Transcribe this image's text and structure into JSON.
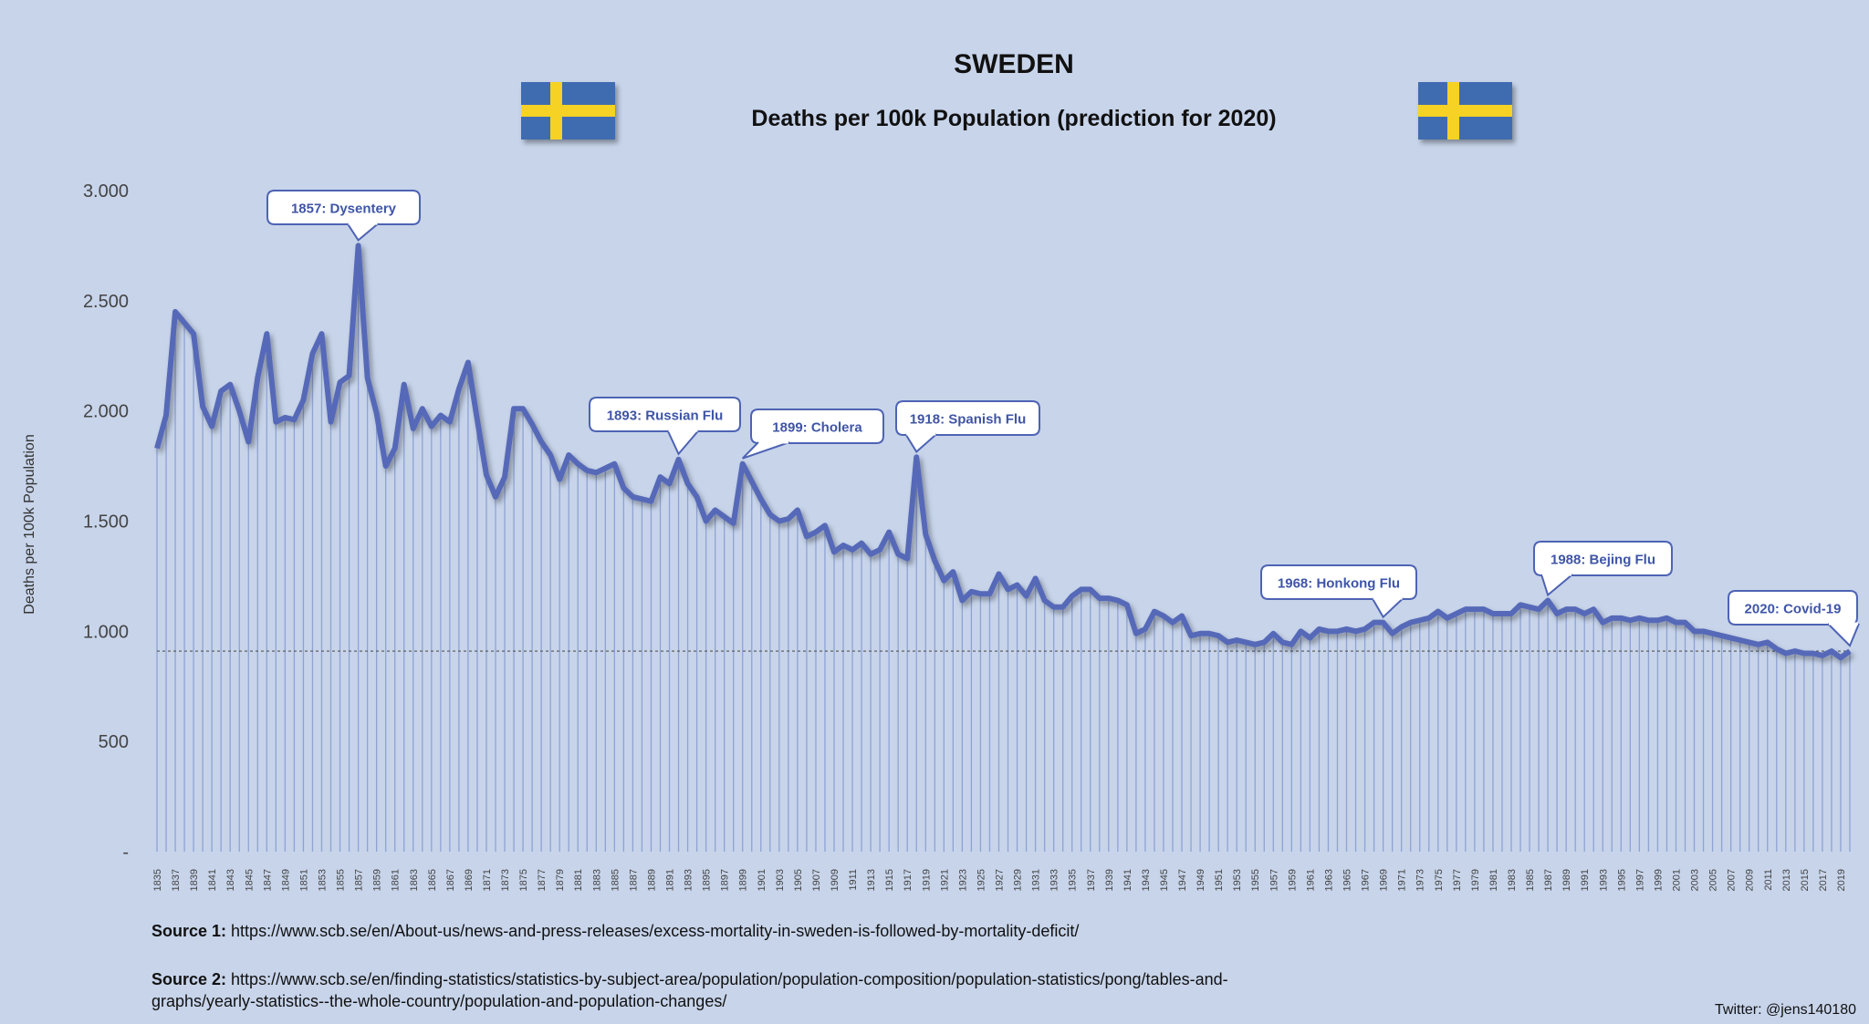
{
  "title": "SWEDEN",
  "subtitle": "Deaths per 100k Population (prediction for 2020)",
  "flag_colors": {
    "blue": "#3f6cb0",
    "yellow": "#f5d224"
  },
  "sources": [
    {
      "label": "Source 1:",
      "text": "https://www.scb.se/en/About-us/news-and-press-releases/excess-mortality-in-sweden-is-followed-by-mortality-deficit/"
    },
    {
      "label": "Source 2:",
      "text": "https://www.scb.se/en/finding-statistics/statistics-by-subject-area/population/population-composition/population-statistics/pong/tables-and-graphs/yearly-statistics--the-whole-country/population-and-population-changes/"
    }
  ],
  "twitter": "Twitter: @jens140180",
  "chart_data": {
    "type": "line",
    "title": "Deaths per 100k Population (prediction for 2020)",
    "ylabel": "Deaths per 100k Population",
    "xlabel": "",
    "ylim": [
      0,
      3000
    ],
    "yticks": [
      0,
      500,
      1000,
      1500,
      2000,
      2500,
      3000
    ],
    "ytick_labels": [
      "-",
      "500",
      "1.000",
      "1.500",
      "2.000",
      "2.500",
      "3.000"
    ],
    "x_start": 1835,
    "x_end": 2020,
    "xtick_step": 2,
    "grid": false,
    "drop_lines": true,
    "reference_line": 910,
    "line_color": "#5669b8",
    "values": [
      1830,
      1980,
      2450,
      2400,
      2350,
      2020,
      1930,
      2090,
      2120,
      2000,
      1860,
      2150,
      2350,
      1950,
      1970,
      1960,
      2050,
      2260,
      2350,
      1950,
      2130,
      2160,
      2750,
      2150,
      1990,
      1750,
      1830,
      2120,
      1920,
      2010,
      1930,
      1980,
      1950,
      2100,
      2220,
      1960,
      1710,
      1610,
      1700,
      2010,
      2010,
      1940,
      1860,
      1800,
      1690,
      1800,
      1760,
      1730,
      1720,
      1740,
      1760,
      1650,
      1610,
      1600,
      1590,
      1700,
      1670,
      1780,
      1670,
      1610,
      1500,
      1550,
      1520,
      1490,
      1760,
      1680,
      1600,
      1530,
      1500,
      1510,
      1550,
      1430,
      1450,
      1480,
      1360,
      1390,
      1370,
      1400,
      1350,
      1370,
      1450,
      1350,
      1330,
      1790,
      1440,
      1320,
      1230,
      1270,
      1140,
      1180,
      1170,
      1170,
      1260,
      1190,
      1210,
      1160,
      1240,
      1140,
      1110,
      1110,
      1160,
      1190,
      1190,
      1150,
      1150,
      1140,
      1120,
      990,
      1010,
      1090,
      1070,
      1040,
      1070,
      980,
      990,
      990,
      980,
      950,
      960,
      950,
      940,
      950,
      990,
      950,
      940,
      1000,
      970,
      1010,
      1000,
      1000,
      1010,
      1000,
      1010,
      1040,
      1040,
      990,
      1020,
      1040,
      1050,
      1060,
      1090,
      1060,
      1080,
      1100,
      1100,
      1100,
      1080,
      1080,
      1080,
      1120,
      1110,
      1100,
      1140,
      1080,
      1100,
      1100,
      1080,
      1100,
      1040,
      1060,
      1060,
      1050,
      1060,
      1050,
      1050,
      1060,
      1040,
      1040,
      1000,
      1000,
      990,
      980,
      970,
      960,
      950,
      940,
      950,
      920,
      900,
      910,
      900,
      900,
      890,
      910,
      880,
      910
    ],
    "annotations": [
      {
        "year": 1857,
        "text": "1857: Dysentery"
      },
      {
        "year": 1892,
        "text": "1893: Russian Flu"
      },
      {
        "year": 1899,
        "text": "1899: Cholera"
      },
      {
        "year": 1918,
        "text": "1918: Spanish Flu"
      },
      {
        "year": 1969,
        "text": "1968: Honkong Flu"
      },
      {
        "year": 1987,
        "text": "1988: Bejing Flu"
      },
      {
        "year": 2020,
        "text": "2020: Covid-19"
      }
    ]
  }
}
